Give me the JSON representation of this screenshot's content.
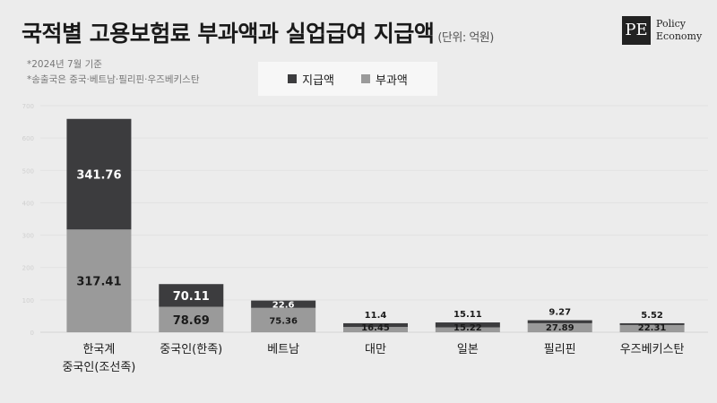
{
  "title": "국적별 고용보험료 부과액과 실업급여 지급액",
  "unit": "(단위: 억원)",
  "notes": [
    "*2024년 7월 기준",
    "*송출국은 중국·베트남·필리핀·우즈베키스탄"
  ],
  "logo": {
    "mark": "PE",
    "line1": "Policy",
    "line2": "Economy"
  },
  "colors": {
    "paid": "#3c3c3e",
    "levied": "#9a9a9a",
    "background": "#ececec"
  },
  "legend": [
    {
      "label": "지급액",
      "series": "paid"
    },
    {
      "label": "부과액",
      "series": "levied"
    }
  ],
  "chart_data": {
    "type": "bar",
    "stacked": true,
    "categories": [
      "한국계\n중국인(조선족)",
      "중국인(한족)",
      "베트남",
      "대만",
      "일본",
      "필리핀",
      "우즈베키스탄"
    ],
    "series": [
      {
        "name": "부과액",
        "key": "levied",
        "values": [
          317.41,
          78.69,
          75.36,
          16.45,
          15.22,
          27.89,
          22.31
        ]
      },
      {
        "name": "지급액",
        "key": "paid",
        "values": [
          341.76,
          70.11,
          22.6,
          11.4,
          15.11,
          9.27,
          5.52
        ]
      }
    ],
    "ylim": [
      0,
      700
    ],
    "yticks": [
      0,
      100,
      200,
      300,
      400,
      500,
      600,
      700
    ],
    "grid": true,
    "xlabel": "",
    "ylabel": ""
  }
}
